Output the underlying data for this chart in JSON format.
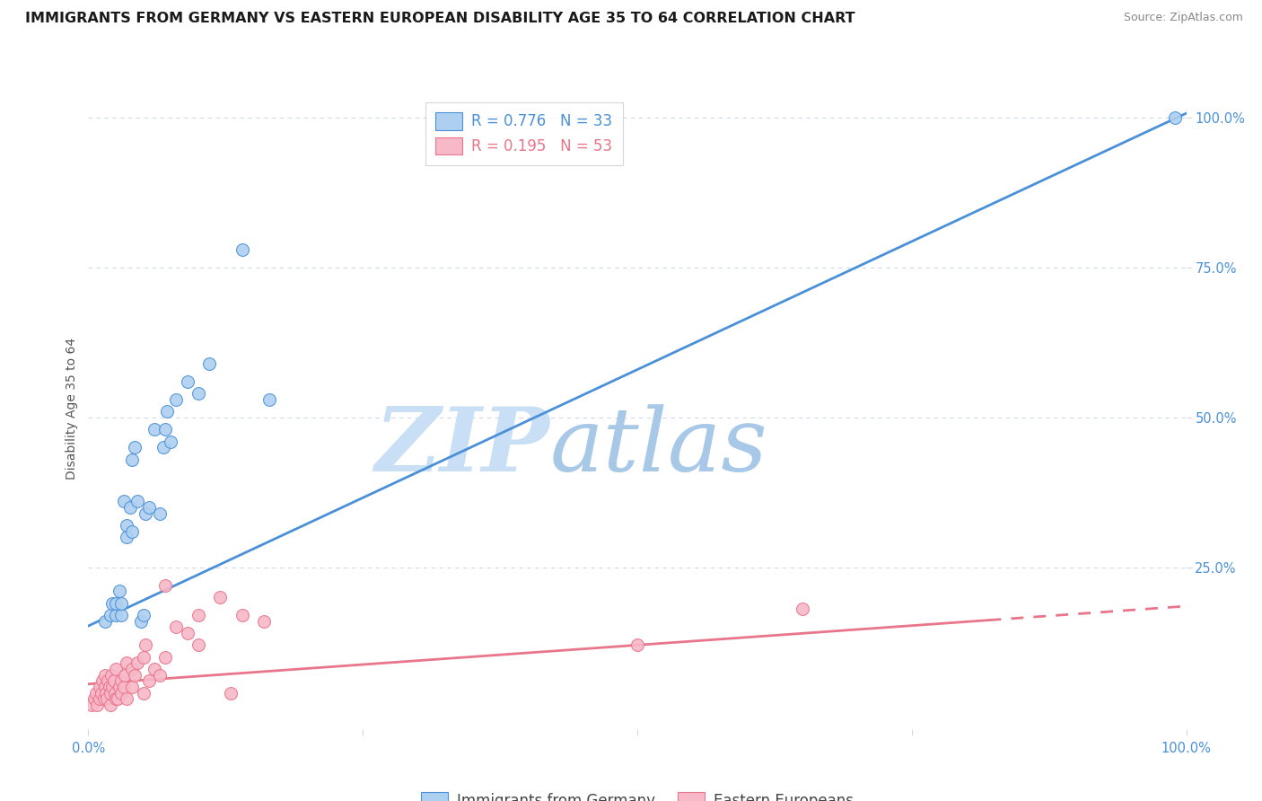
{
  "title": "IMMIGRANTS FROM GERMANY VS EASTERN EUROPEAN DISABILITY AGE 35 TO 64 CORRELATION CHART",
  "source": "Source: ZipAtlas.com",
  "ylabel": "Disability Age 35 to 64",
  "xlim": [
    0,
    1.0
  ],
  "ylim": [
    -0.02,
    1.05
  ],
  "ytick_labels": [
    "25.0%",
    "50.0%",
    "75.0%",
    "100.0%"
  ],
  "ytick_positions": [
    0.25,
    0.5,
    0.75,
    1.0
  ],
  "watermark_zip": "ZIP",
  "watermark_atlas": "atlas",
  "blue_R": "0.776",
  "blue_N": "33",
  "pink_R": "0.195",
  "pink_N": "53",
  "blue_color": "#aed0f0",
  "pink_color": "#f7b8c8",
  "blue_line_color": "#4a90d9",
  "pink_line_color": "#e8758a",
  "blue_scatter_x": [
    0.015,
    0.02,
    0.022,
    0.025,
    0.025,
    0.028,
    0.03,
    0.03,
    0.032,
    0.035,
    0.035,
    0.038,
    0.04,
    0.04,
    0.042,
    0.045,
    0.048,
    0.05,
    0.052,
    0.055,
    0.06,
    0.065,
    0.068,
    0.07,
    0.072,
    0.075,
    0.08,
    0.09,
    0.1,
    0.11,
    0.14,
    0.165,
    0.99
  ],
  "blue_scatter_y": [
    0.16,
    0.17,
    0.19,
    0.17,
    0.19,
    0.21,
    0.17,
    0.19,
    0.36,
    0.3,
    0.32,
    0.35,
    0.31,
    0.43,
    0.45,
    0.36,
    0.16,
    0.17,
    0.34,
    0.35,
    0.48,
    0.34,
    0.45,
    0.48,
    0.51,
    0.46,
    0.53,
    0.56,
    0.54,
    0.59,
    0.78,
    0.53,
    1.0
  ],
  "pink_scatter_x": [
    0.003,
    0.005,
    0.007,
    0.008,
    0.01,
    0.01,
    0.012,
    0.013,
    0.014,
    0.015,
    0.015,
    0.016,
    0.017,
    0.018,
    0.019,
    0.02,
    0.02,
    0.021,
    0.022,
    0.023,
    0.024,
    0.025,
    0.025,
    0.027,
    0.028,
    0.03,
    0.03,
    0.032,
    0.033,
    0.035,
    0.035,
    0.04,
    0.04,
    0.042,
    0.045,
    0.05,
    0.05,
    0.052,
    0.055,
    0.06,
    0.065,
    0.07,
    0.07,
    0.08,
    0.09,
    0.1,
    0.1,
    0.12,
    0.13,
    0.14,
    0.16,
    0.5,
    0.65
  ],
  "pink_scatter_y": [
    0.02,
    0.03,
    0.04,
    0.02,
    0.05,
    0.03,
    0.04,
    0.06,
    0.03,
    0.05,
    0.07,
    0.04,
    0.03,
    0.06,
    0.05,
    0.02,
    0.04,
    0.07,
    0.05,
    0.06,
    0.04,
    0.03,
    0.08,
    0.03,
    0.05,
    0.04,
    0.06,
    0.05,
    0.07,
    0.03,
    0.09,
    0.05,
    0.08,
    0.07,
    0.09,
    0.1,
    0.04,
    0.12,
    0.06,
    0.08,
    0.07,
    0.1,
    0.22,
    0.15,
    0.14,
    0.12,
    0.17,
    0.2,
    0.04,
    0.17,
    0.16,
    0.12,
    0.18
  ],
  "blue_line_y_intercept": 0.152,
  "blue_line_slope": 0.856,
  "pink_line_x_solid_end": 0.82,
  "pink_line_y_intercept": 0.055,
  "pink_line_slope": 0.13,
  "grid_color": "#d0d8e8",
  "background_color": "#ffffff",
  "title_fontsize": 11.5,
  "axis_label_fontsize": 10,
  "tick_fontsize": 10.5,
  "legend_fontsize": 12,
  "source_fontsize": 9
}
